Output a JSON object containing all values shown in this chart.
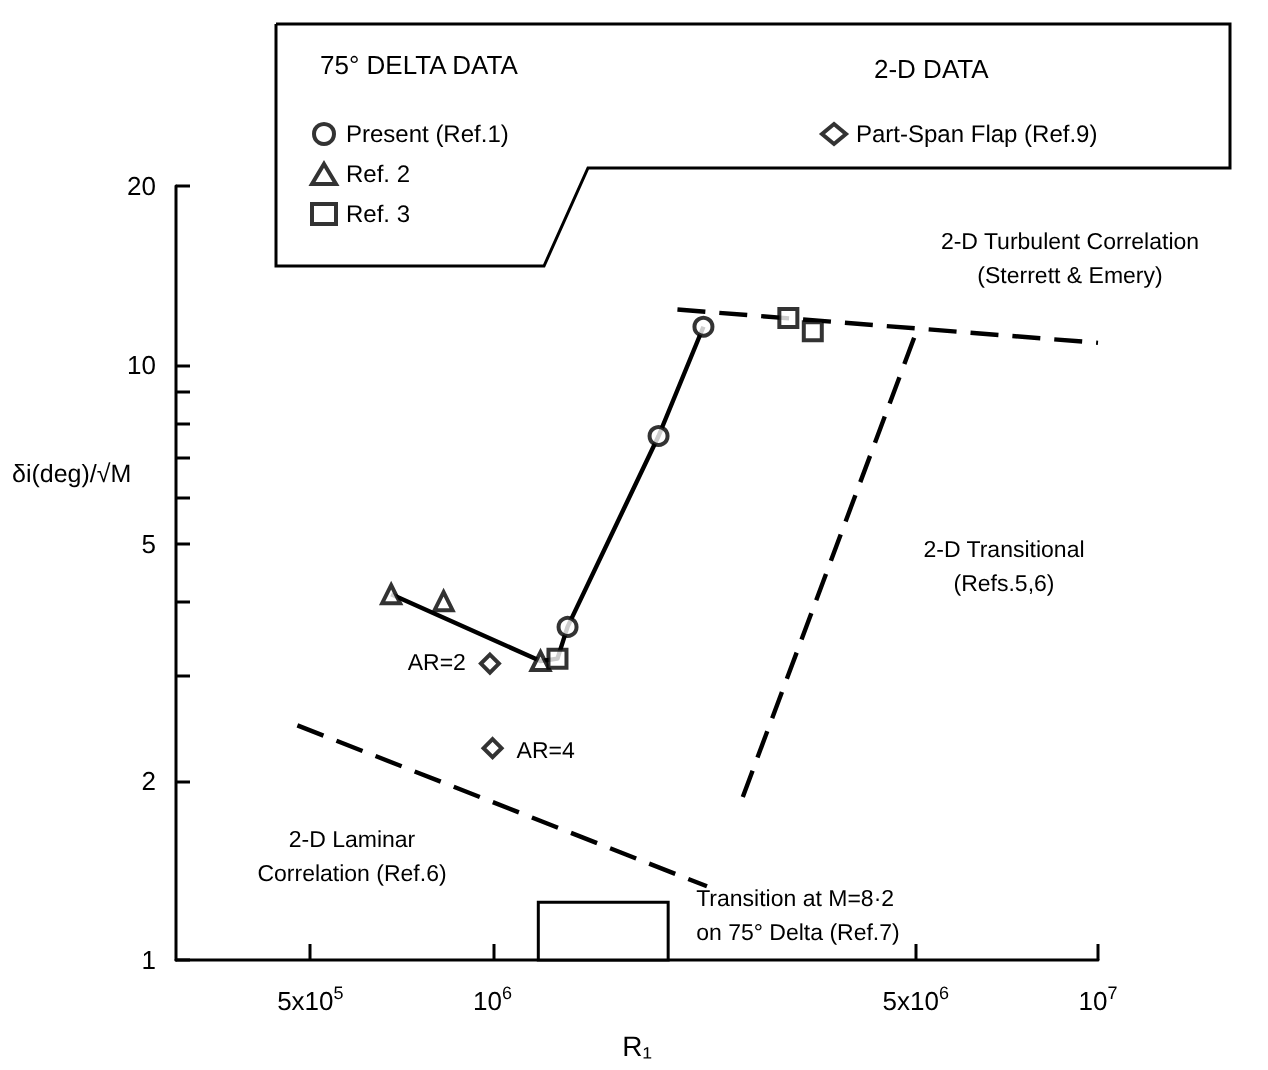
{
  "chart_data": {
    "type": "scatter",
    "xlabel": "R₁",
    "ylabel": "δi(deg)/√M",
    "legend_title": "75° DELTA DATA",
    "log": "xy",
    "xlim": [
      300000,
      10000000
    ],
    "ylim": [
      1,
      20
    ],
    "xticks": [
      {
        "value": 500000,
        "label": "5x10$^{5}$"
      },
      {
        "value": 1000000,
        "label": "10$^{6}$"
      },
      {
        "value": 5000000,
        "label": "5x10$^{6}$"
      },
      {
        "value": 10000000,
        "label": "10$^{7}$"
      }
    ],
    "yticks": [
      1,
      2,
      {
        "value": 3,
        "label": null
      },
      {
        "value": 4,
        "label": null
      },
      5,
      {
        "value": 6,
        "label": null
      },
      {
        "value": 7,
        "label": null
      },
      {
        "value": 8,
        "label": null
      },
      {
        "value": 9,
        "label": null
      },
      10,
      20
    ],
    "grid": false,
    "legend": "top",
    "series": [
      {
        "name": "Present (Ref.1)",
        "marker": "circle",
        "color": "#000000",
        "x": [
          1330000,
          1880000,
          2230000
        ],
        "values": [
          3.63,
          7.6,
          11.6
        ]
      },
      {
        "name": "Ref. 2",
        "marker": "triangle",
        "color": "#000000",
        "x": [
          680000,
          830000,
          1200000
        ],
        "values": [
          4.12,
          4.01,
          3.18
        ]
      },
      {
        "name": "Ref. 3",
        "marker": "square",
        "color": "#000000",
        "x": [
          1280000,
          3080000,
          3380000
        ],
        "values": [
          3.21,
          12.0,
          11.4
        ]
      },
      {
        "name": "Part-Span Flap (Ref.9)",
        "marker": "diamond",
        "color": "#000000",
        "x": [
          990000,
          1000000
        ],
        "values": [
          3.15,
          2.27
        ]
      },
      {
        "type": "line",
        "color": "#000000",
        "line_style": "solid",
        "x": [
          680000,
          1200000,
          1280000,
          1330000,
          1880000,
          2230000
        ],
        "values": [
          4.12,
          3.18,
          3.21,
          3.63,
          7.6,
          11.6
        ]
      },
      {
        "type": "line",
        "color": "#000000",
        "line_style": "dashed",
        "x": [
          2020000,
          10000000
        ],
        "values": [
          12.4,
          10.9
        ]
      },
      {
        "type": "line",
        "color": "#000000",
        "line_style": "dashed",
        "x": [
          2590000,
          5000000
        ],
        "values": [
          1.88,
          11.3
        ]
      },
      {
        "type": "line",
        "color": "#000000",
        "line_style": "dashed",
        "x": [
          476000,
          2260000
        ],
        "values": [
          2.48,
          1.33
        ]
      }
    ],
    "bands": [
      {
        "axis": "x",
        "from": 1190000,
        "to": 1950000,
        "label": "Transition at M=8·2\non 75° Delta (Ref.7)"
      }
    ],
    "annotations": [
      "2-D DATA",
      "2-D Turbulent Correlation\n(Sterrett & Emery)",
      "2-D Transitional\n(Refs.5,6)",
      "2-D Laminar\nCorrelation (Ref.6)",
      {
        "text": "AR=2",
        "x": 990000,
        "y": 3.15
      },
      {
        "text": "AR=4",
        "x": 1000000,
        "y": 2.27
      }
    ]
  }
}
